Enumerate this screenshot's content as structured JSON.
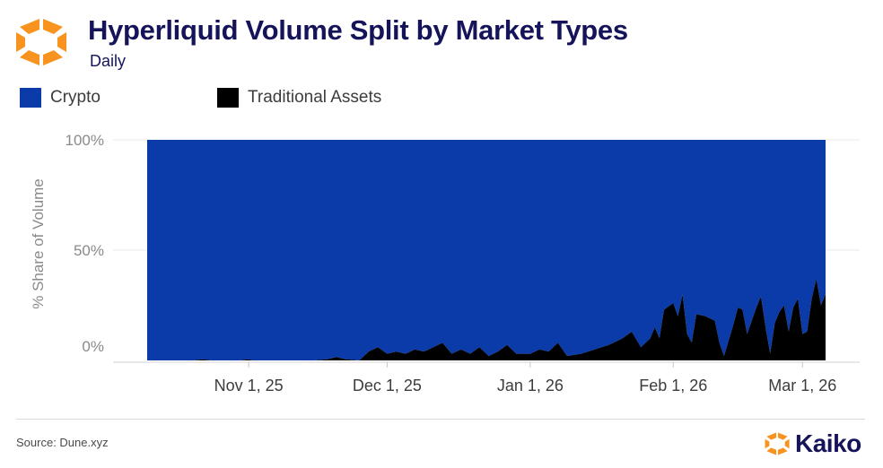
{
  "header": {
    "title": "Hyperliquid Volume Split by Market Types",
    "subtitle": "Daily"
  },
  "legend": {
    "items": [
      {
        "label": "Crypto",
        "color": "#0b3ba8"
      },
      {
        "label": "Traditional Assets",
        "color": "#000000"
      }
    ]
  },
  "footer": {
    "source": "Source: Dune.xyz",
    "brand": "Kaiko",
    "brand_icon": "kaiko-logo-icon"
  },
  "colors": {
    "brand_orange": "#f7931e",
    "title_navy": "#15145b"
  },
  "chart_data": {
    "type": "area",
    "stacked": true,
    "ylabel": "% Share of Volume",
    "xlabel": "",
    "ylim": [
      0,
      100
    ],
    "yticks": [
      {
        "value": 0,
        "label": "0%"
      },
      {
        "value": 50,
        "label": "50%"
      },
      {
        "value": 100,
        "label": "100%"
      }
    ],
    "xlim": [
      "2025-10-10",
      "2026-03-14"
    ],
    "xticks": [
      {
        "date": "2025-11-01",
        "label": "Nov 1, 25"
      },
      {
        "date": "2025-12-01",
        "label": "Dec 1, 25"
      },
      {
        "date": "2026-01-01",
        "label": "Jan 1, 26"
      },
      {
        "date": "2026-02-01",
        "label": "Feb 1, 26"
      },
      {
        "date": "2026-03-01",
        "label": "Mar 1, 26"
      }
    ],
    "grid": true,
    "legend_position": "top-left",
    "series": [
      {
        "name": "Crypto",
        "color": "#0b3ba8",
        "note_complement": true,
        "values": "100 minus Traditional Assets share for each day"
      },
      {
        "name": "Traditional Assets",
        "color": "#000000",
        "points": [
          [
            "2025-10-10",
            0
          ],
          [
            "2025-10-20",
            0
          ],
          [
            "2025-10-22",
            0.5
          ],
          [
            "2025-10-24",
            0
          ],
          [
            "2025-10-30",
            0
          ],
          [
            "2025-11-01",
            0.5
          ],
          [
            "2025-11-02",
            0
          ],
          [
            "2025-11-10",
            0
          ],
          [
            "2025-11-15",
            0
          ],
          [
            "2025-11-18",
            0.5
          ],
          [
            "2025-11-20",
            1.5
          ],
          [
            "2025-11-22",
            0.5
          ],
          [
            "2025-11-25",
            0
          ],
          [
            "2025-11-27",
            4
          ],
          [
            "2025-11-29",
            6
          ],
          [
            "2025-12-01",
            3
          ],
          [
            "2025-12-03",
            4
          ],
          [
            "2025-12-05",
            3
          ],
          [
            "2025-12-07",
            5
          ],
          [
            "2025-12-09",
            4
          ],
          [
            "2025-12-11",
            6
          ],
          [
            "2025-12-13",
            8
          ],
          [
            "2025-12-15",
            3
          ],
          [
            "2025-12-17",
            5
          ],
          [
            "2025-12-19",
            3
          ],
          [
            "2025-12-21",
            6
          ],
          [
            "2025-12-23",
            2
          ],
          [
            "2025-12-25",
            4
          ],
          [
            "2025-12-27",
            7
          ],
          [
            "2025-12-29",
            3
          ],
          [
            "2026-01-01",
            3
          ],
          [
            "2026-01-03",
            5
          ],
          [
            "2026-01-05",
            4
          ],
          [
            "2026-01-07",
            8
          ],
          [
            "2026-01-09",
            2
          ],
          [
            "2026-01-12",
            3
          ],
          [
            "2026-01-15",
            5
          ],
          [
            "2026-01-18",
            7
          ],
          [
            "2026-01-21",
            10
          ],
          [
            "2026-01-23",
            13
          ],
          [
            "2026-01-25",
            6
          ],
          [
            "2026-01-27",
            10
          ],
          [
            "2026-01-28",
            15
          ],
          [
            "2026-01-29",
            10
          ],
          [
            "2026-01-30",
            23
          ],
          [
            "2026-02-01",
            26
          ],
          [
            "2026-02-02",
            20
          ],
          [
            "2026-02-03",
            30
          ],
          [
            "2026-02-04",
            12
          ],
          [
            "2026-02-05",
            8
          ],
          [
            "2026-02-06",
            21
          ],
          [
            "2026-02-08",
            20
          ],
          [
            "2026-02-10",
            18
          ],
          [
            "2026-02-11",
            8
          ],
          [
            "2026-02-12",
            2
          ],
          [
            "2026-02-14",
            16
          ],
          [
            "2026-02-15",
            24
          ],
          [
            "2026-02-16",
            23
          ],
          [
            "2026-02-17",
            12
          ],
          [
            "2026-02-19",
            24
          ],
          [
            "2026-02-20",
            29
          ],
          [
            "2026-02-21",
            15
          ],
          [
            "2026-02-22",
            3
          ],
          [
            "2026-02-23",
            17
          ],
          [
            "2026-02-24",
            22
          ],
          [
            "2026-02-25",
            25
          ],
          [
            "2026-02-26",
            13
          ],
          [
            "2026-02-27",
            24
          ],
          [
            "2026-02-28",
            28
          ],
          [
            "2026-03-01",
            12
          ],
          [
            "2026-03-02",
            13
          ],
          [
            "2026-03-03",
            28
          ],
          [
            "2026-03-04",
            37
          ],
          [
            "2026-03-05",
            25
          ],
          [
            "2026-03-06",
            30
          ]
        ]
      }
    ]
  }
}
